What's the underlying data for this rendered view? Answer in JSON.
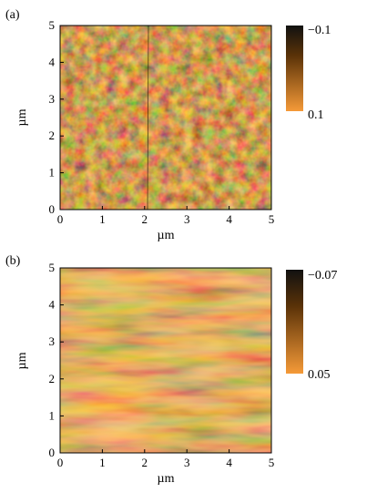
{
  "chart_data": [
    {
      "type": "heatmap",
      "panel_label": "(a)",
      "xlabel": "µm",
      "ylabel": "µm",
      "x_ticks": [
        "0",
        "1",
        "2",
        "3",
        "4",
        "5"
      ],
      "y_ticks": [
        "0",
        "1",
        "2",
        "3",
        "4",
        "5"
      ],
      "xlim": [
        0,
        5
      ],
      "ylim": [
        0,
        5
      ],
      "colorbar": {
        "min_label": "0.1",
        "max_label": "−0.1",
        "min": 0.1,
        "max": -0.1,
        "colors": [
          "#f59a38",
          "#111111"
        ]
      },
      "texture": "fine-grain"
    },
    {
      "type": "heatmap",
      "panel_label": "(b)",
      "xlabel": "µm",
      "ylabel": "µm",
      "x_ticks": [
        "0",
        "1",
        "2",
        "3",
        "4",
        "5"
      ],
      "y_ticks": [
        "0",
        "1",
        "2",
        "3",
        "4",
        "5"
      ],
      "xlim": [
        0,
        5
      ],
      "ylim": [
        0,
        5
      ],
      "colorbar": {
        "min_label": "0.05",
        "max_label": "−0.07",
        "min": 0.05,
        "max": -0.07,
        "colors": [
          "#f59a38",
          "#111111"
        ]
      },
      "texture": "horizontal-streaks"
    }
  ]
}
